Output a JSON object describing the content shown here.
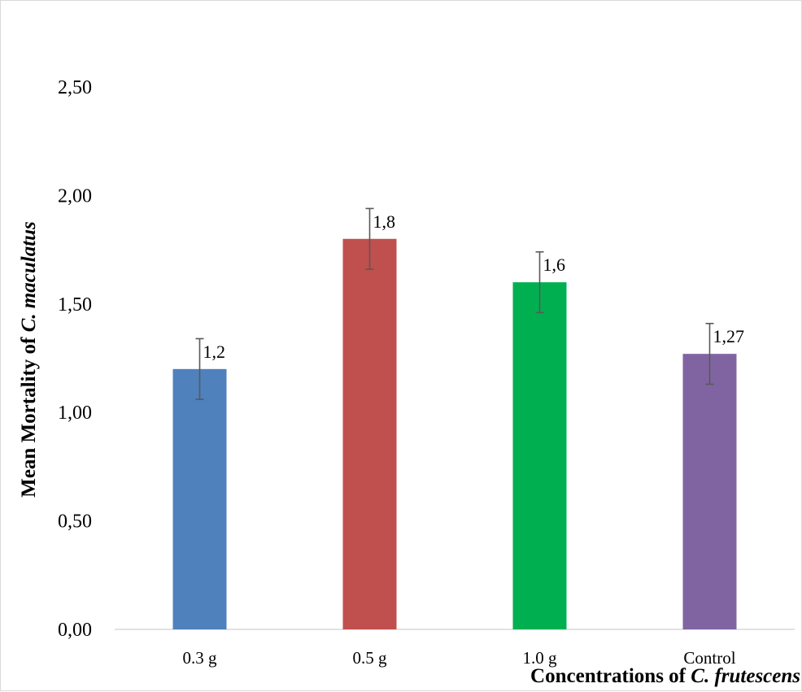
{
  "chart_data": {
    "type": "bar",
    "categories": [
      "0.3 g",
      "0.5 g",
      "1.0 g",
      "Control"
    ],
    "values": [
      1.2,
      1.8,
      1.6,
      1.27
    ],
    "data_labels": [
      "1,2",
      "1,8",
      "1,6",
      "1,27"
    ],
    "error_bars": [
      0.14,
      0.14,
      0.14,
      0.14
    ],
    "colors": [
      "#4F81BD",
      "#C0504D",
      "#00B050",
      "#8064A2"
    ],
    "ylim": [
      0,
      2.5
    ],
    "yticks": [
      0,
      0.5,
      1.0,
      1.5,
      2.0,
      2.5
    ],
    "ytick_labels": [
      "0,00",
      "0,50",
      "1,00",
      "1,50",
      "2,00",
      "2,50"
    ],
    "ylabel_prefix": "Mean Mortality of ",
    "ylabel_italic": "C. maculatus",
    "xlabel_prefix": "Concentrations of ",
    "xlabel_italic": "C. frutescens",
    "grid": false,
    "legend": "none"
  }
}
